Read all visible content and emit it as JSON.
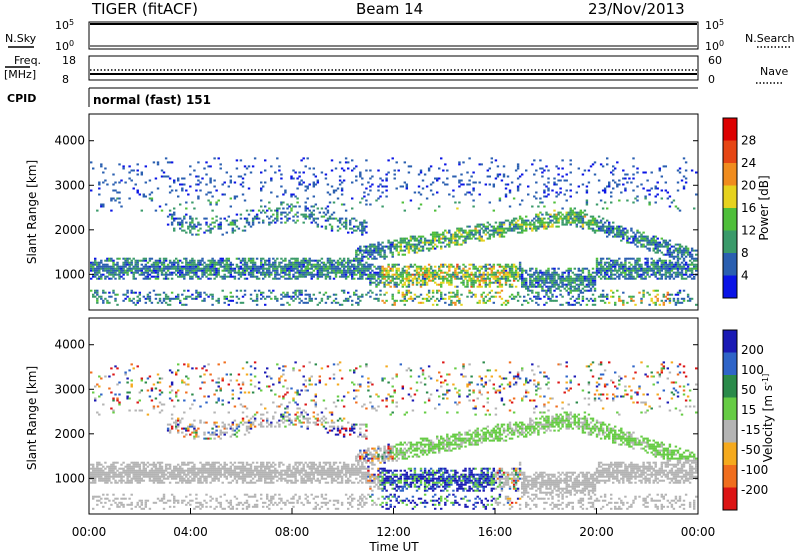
{
  "header": {
    "title": "TIGER (fitACF)",
    "beam": "Beam 14",
    "date": "23/Nov/2013"
  },
  "strip_labels": {
    "nsky": "N.Sky",
    "nsky_top": "10^5",
    "nsky_bottom": "10^0",
    "nsearch": "N.Search",
    "nsearch_top": "10^5",
    "nsearch_bottom": "10^0",
    "freq": "Freq.",
    "freq_unit": "[MHz]",
    "freq_top": "18",
    "freq_bottom": "8",
    "nave": "Nave",
    "nave_top": "60",
    "nave_bottom": "0",
    "cpid": "CPID",
    "cpid_value": "normal (fast) 151"
  },
  "colors": {
    "power": [
      "#0a14e6",
      "#2a5fb0",
      "#3a9a6a",
      "#4fbf3a",
      "#e6d21e",
      "#f08c1e",
      "#e64614",
      "#dc0000"
    ],
    "velocity": [
      "#1a1ab4",
      "#2e64c8",
      "#2a8a4a",
      "#66cc44",
      "#b4b4b4",
      "#f5aa1e",
      "#f06e1e",
      "#dc1414"
    ]
  },
  "chart_data": [
    {
      "type": "heatmap",
      "name": "power-panel",
      "ylabel": "Slant Range [km]",
      "yticks": [
        "1000",
        "2000",
        "3000",
        "4000"
      ],
      "ylim": [
        200,
        4600
      ],
      "xlim": [
        "00:00",
        "24:00"
      ],
      "colorbar_label": "Power [dB]",
      "colorbar_ticks": [
        "4",
        "8",
        "12",
        "16",
        "20",
        "24",
        "28"
      ],
      "colorbar_range": [
        0,
        32
      ]
    },
    {
      "type": "heatmap",
      "name": "velocity-panel",
      "ylabel": "Slant Range [km]",
      "yticks": [
        "1000",
        "2000",
        "3000",
        "4000"
      ],
      "ylim": [
        200,
        4600
      ],
      "xlim": [
        "00:00",
        "24:00"
      ],
      "xlabel": "Time UT",
      "xticks": [
        "00:00",
        "04:00",
        "08:00",
        "12:00",
        "16:00",
        "20:00",
        "00:00"
      ],
      "colorbar_label": "Velocity [m s^-1]",
      "colorbar_ticks": [
        "200",
        "100",
        "50",
        "15",
        "-15",
        "-50",
        "-100",
        "-200"
      ]
    }
  ]
}
